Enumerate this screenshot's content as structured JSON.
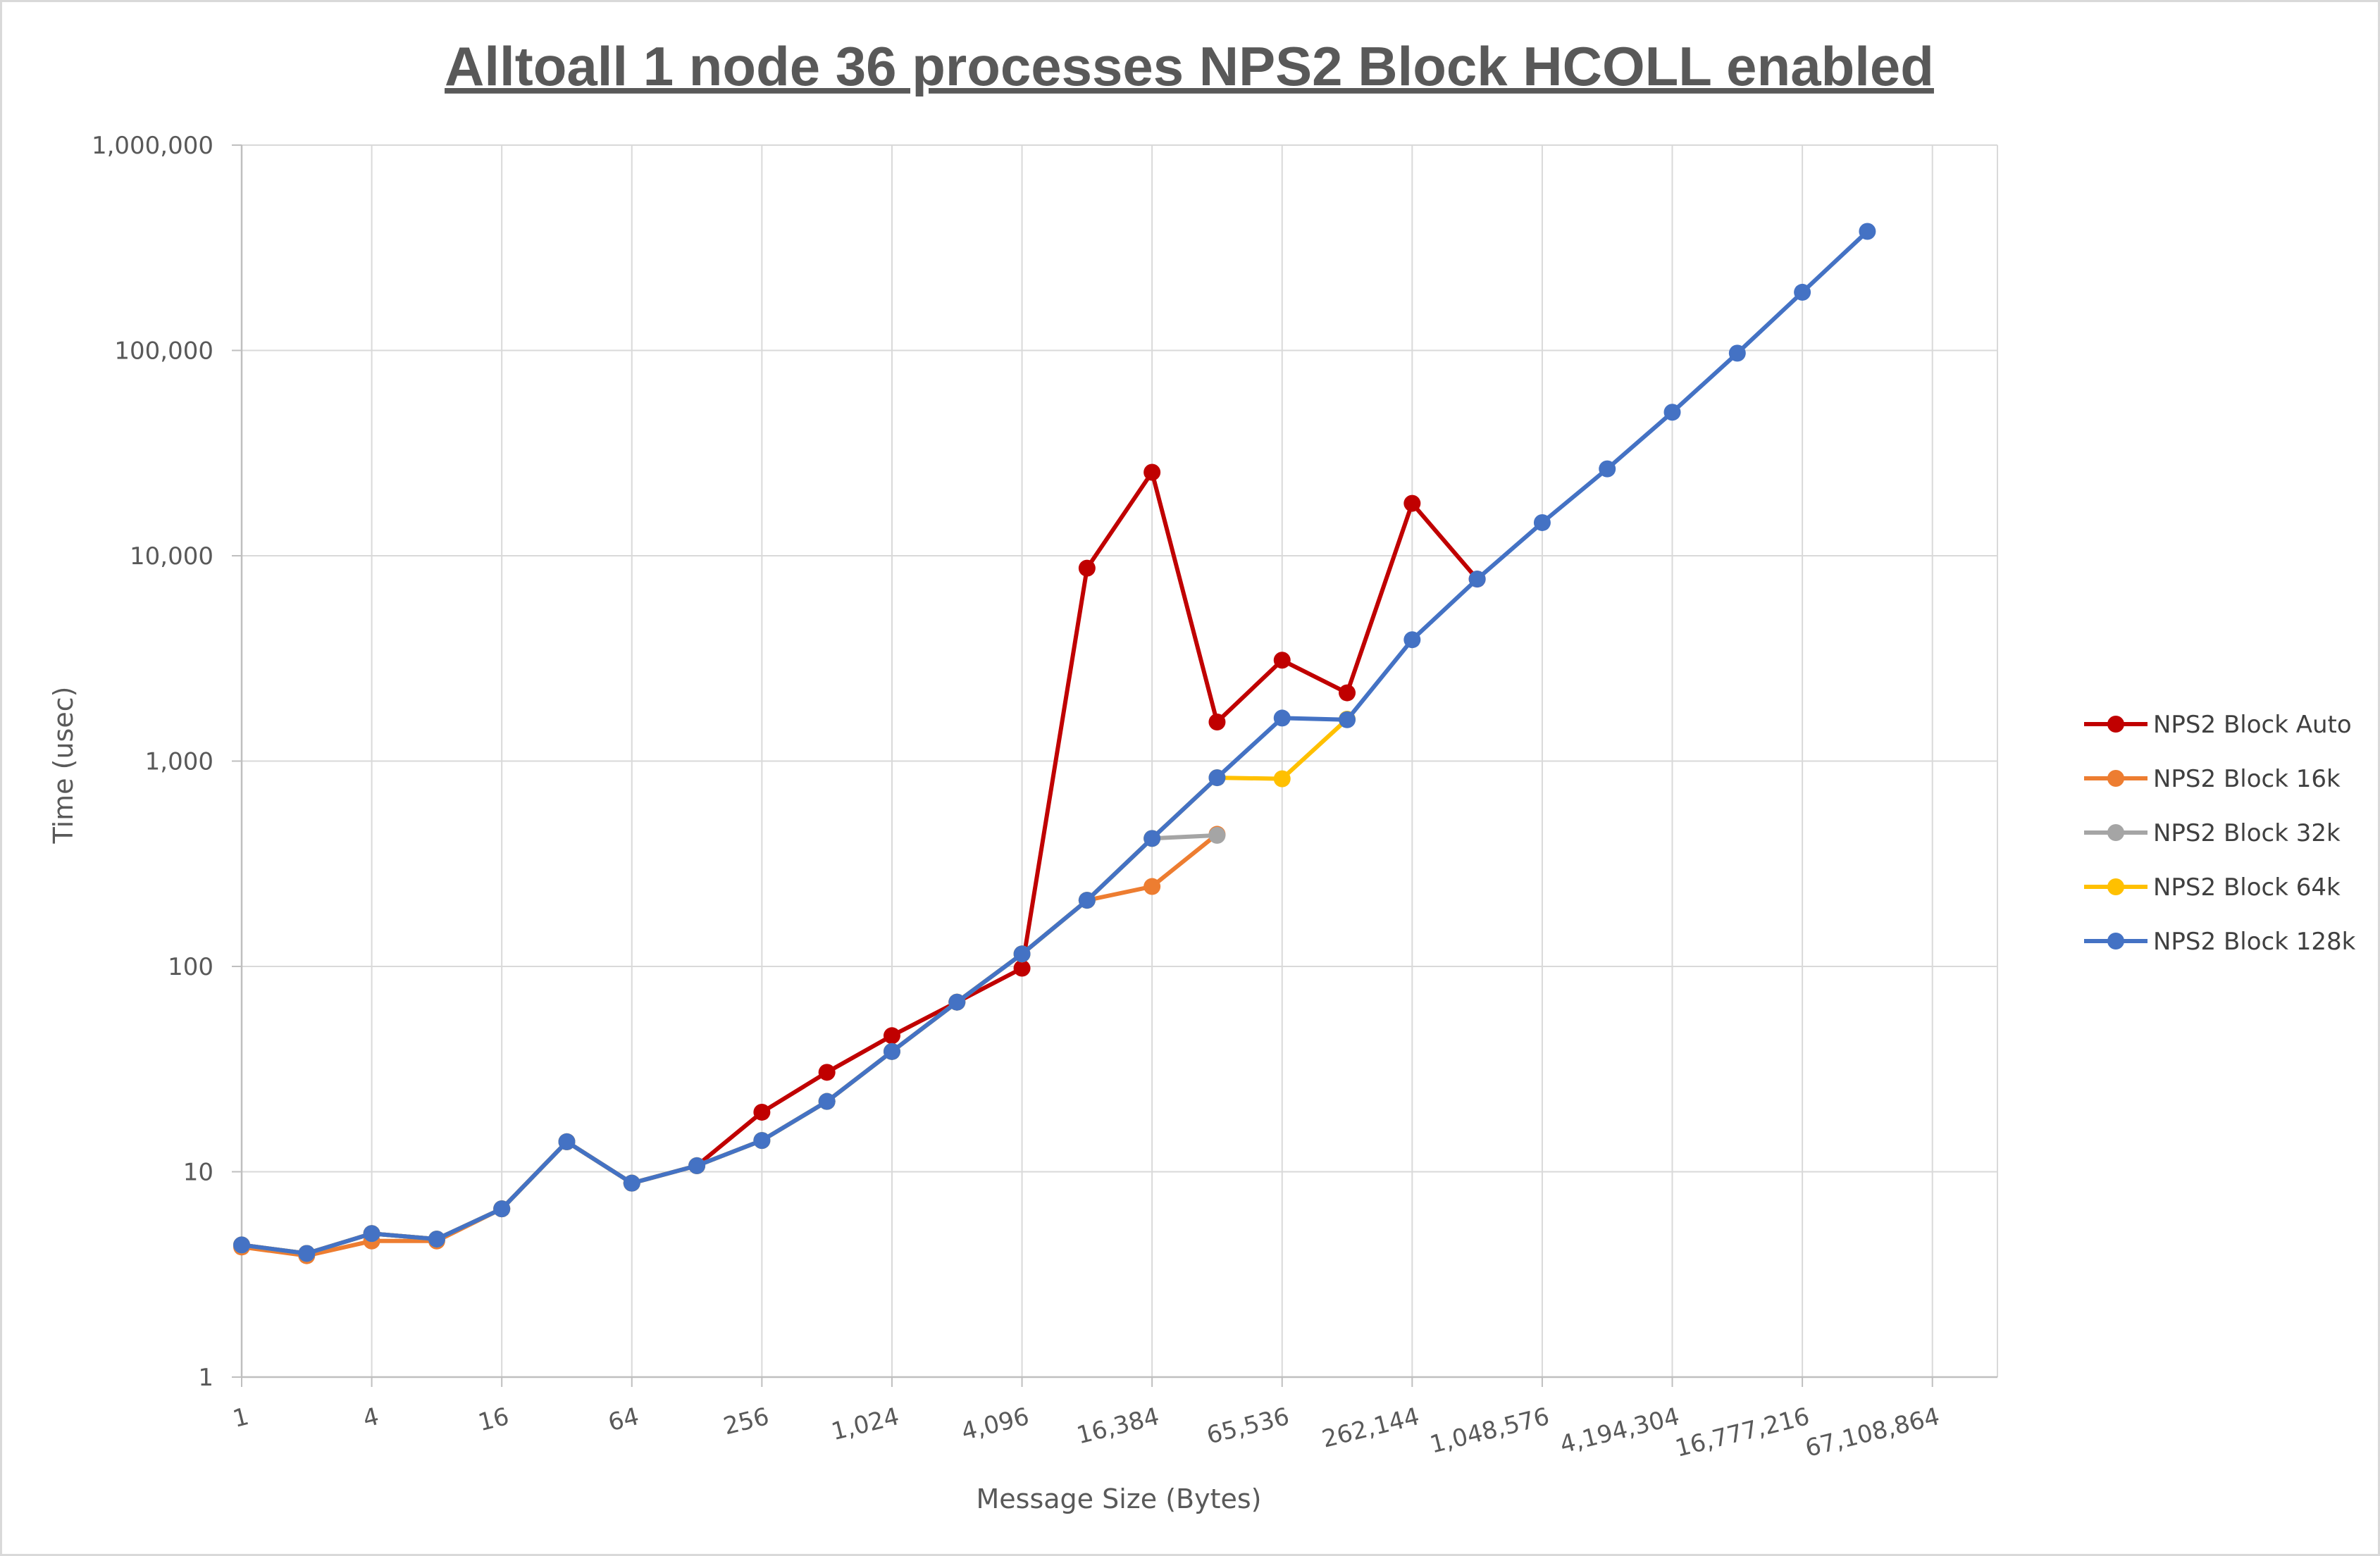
{
  "chart_data": {
    "type": "line",
    "title": "Alltoall 1 node 36 processes NPS2 Block HCOLL enabled",
    "xlabel": "Message Size (Bytes)",
    "ylabel": "Time (usec)",
    "x_scale": "log2",
    "y_scale": "log10",
    "x_ticks": [
      1,
      4,
      16,
      64,
      256,
      1024,
      4096,
      16384,
      65536,
      262144,
      1048576,
      4194304,
      16777216,
      67108864
    ],
    "x_tick_labels": [
      "1",
      "4",
      "16",
      "64",
      "256",
      "1,024",
      "4,096",
      "16,384",
      "65,536",
      "262,144",
      "1,048,576",
      "4,194,304",
      "16,777,216",
      "67,108,864"
    ],
    "y_ticks": [
      1,
      10,
      100,
      1000,
      10000,
      100000,
      1000000
    ],
    "y_tick_labels": [
      "1",
      "10",
      "100",
      "1,000",
      "10,000",
      "100,000",
      "1,000,000"
    ],
    "xlim": [
      1,
      134217728
    ],
    "ylim": [
      1,
      1000000
    ],
    "grid": true,
    "legend_position": "right",
    "series": [
      {
        "name": "NPS2 Block Auto",
        "color": "#c00000",
        "x": [
          1,
          2,
          4,
          8,
          16,
          32,
          64,
          128,
          256,
          512,
          1024,
          2048,
          4096,
          8192,
          16384,
          32768,
          65536,
          131072,
          262144,
          524288
        ],
        "y": [
          4.4,
          4.0,
          5.0,
          4.7,
          6.6,
          14,
          8.8,
          10.7,
          19.5,
          30.5,
          46,
          67,
          98,
          8700,
          25500,
          1550,
          3100,
          2150,
          18000,
          7700
        ]
      },
      {
        "name": "NPS2 Block 16k",
        "color": "#ed7d31",
        "x": [
          1,
          2,
          4,
          8,
          16,
          32,
          64,
          128,
          256,
          512,
          1024,
          2048,
          4096,
          8192,
          16384,
          32768
        ],
        "y": [
          4.3,
          3.9,
          4.6,
          4.6,
          6.6,
          14,
          8.8,
          10.7,
          14.2,
          22,
          38.5,
          67,
          115,
          210,
          245,
          440
        ]
      },
      {
        "name": "NPS2 Block 32k",
        "color": "#a5a5a5",
        "x": [
          1,
          2,
          4,
          8,
          16,
          32,
          64,
          128,
          256,
          512,
          1024,
          2048,
          4096,
          8192,
          16384,
          32768
        ],
        "y": [
          4.4,
          4.0,
          5.0,
          4.7,
          6.6,
          14,
          8.8,
          10.7,
          14.2,
          22,
          38.5,
          67,
          115,
          210,
          420,
          435
        ]
      },
      {
        "name": "NPS2 Block 64k",
        "color": "#ffc000",
        "x": [
          1,
          2,
          4,
          8,
          16,
          32,
          64,
          128,
          256,
          512,
          1024,
          2048,
          4096,
          8192,
          16384,
          32768,
          65536,
          131072
        ],
        "y": [
          4.4,
          4.0,
          5.0,
          4.7,
          6.6,
          14,
          8.8,
          10.7,
          14.2,
          22,
          38.5,
          67,
          115,
          210,
          420,
          830,
          820,
          1600
        ]
      },
      {
        "name": "NPS2 Block 128k",
        "color": "#4472c4",
        "x": [
          1,
          2,
          4,
          8,
          16,
          32,
          64,
          128,
          256,
          512,
          1024,
          2048,
          4096,
          8192,
          16384,
          32768,
          65536,
          131072,
          262144,
          524288,
          1048576,
          2097152,
          4194304,
          8388608,
          16777216,
          33554432
        ],
        "y": [
          4.4,
          4.0,
          5.0,
          4.7,
          6.6,
          14,
          8.8,
          10.7,
          14.2,
          22,
          38.5,
          67,
          115,
          210,
          420,
          830,
          1620,
          1590,
          3900,
          7700,
          14500,
          26500,
          50000,
          97000,
          192000,
          380000
        ]
      }
    ]
  }
}
